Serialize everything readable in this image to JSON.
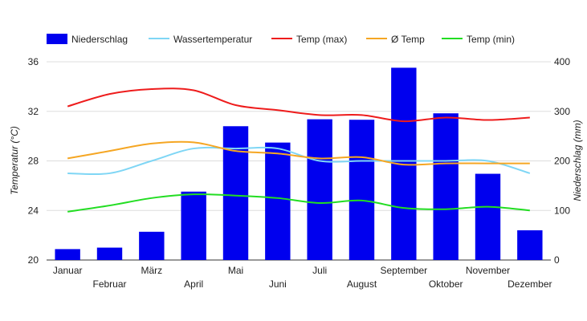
{
  "chart_data": {
    "type": "bar",
    "categories": [
      "Januar",
      "Februar",
      "März",
      "April",
      "Mai",
      "Juni",
      "Juli",
      "August",
      "September",
      "Oktober",
      "November",
      "Dezember"
    ],
    "y_left": {
      "label": "Temperatur (°C)",
      "range": [
        20,
        36
      ],
      "ticks": [
        "20",
        "24",
        "28",
        "32",
        "36"
      ]
    },
    "y_right": {
      "label": "Niederschlag (mm)",
      "range": [
        0,
        400
      ],
      "ticks": [
        "0",
        "100",
        "200",
        "300",
        "400"
      ]
    },
    "grid": true,
    "legend_position": "top",
    "bar_series": {
      "name": "Niederschlag",
      "axis": "right",
      "color": "#0000ee",
      "values": [
        22,
        25,
        57,
        138,
        270,
        237,
        284,
        283,
        388,
        296,
        174,
        60
      ]
    },
    "line_series": [
      {
        "name": "Wassertemperatur",
        "axis": "left",
        "color": "#7fd6f5",
        "values": [
          27.0,
          27.0,
          28.0,
          29.0,
          29.0,
          29.0,
          28.0,
          28.0,
          28.0,
          28.0,
          28.0,
          27.0
        ]
      },
      {
        "name": "Temp (max)",
        "axis": "left",
        "color": "#ee1c1c",
        "values": [
          32.4,
          33.4,
          33.8,
          33.7,
          32.5,
          32.1,
          31.7,
          31.7,
          31.2,
          31.5,
          31.3,
          31.5
        ]
      },
      {
        "name": "Ø Temp",
        "axis": "left",
        "color": "#f5a623",
        "values": [
          28.2,
          28.8,
          29.4,
          29.5,
          28.8,
          28.6,
          28.2,
          28.3,
          27.7,
          27.8,
          27.8,
          27.8
        ]
      },
      {
        "name": "Temp (min)",
        "axis": "left",
        "color": "#22dd22",
        "values": [
          23.9,
          24.4,
          25.0,
          25.3,
          25.2,
          25.0,
          24.6,
          24.8,
          24.2,
          24.1,
          24.3,
          24.0
        ]
      }
    ]
  }
}
